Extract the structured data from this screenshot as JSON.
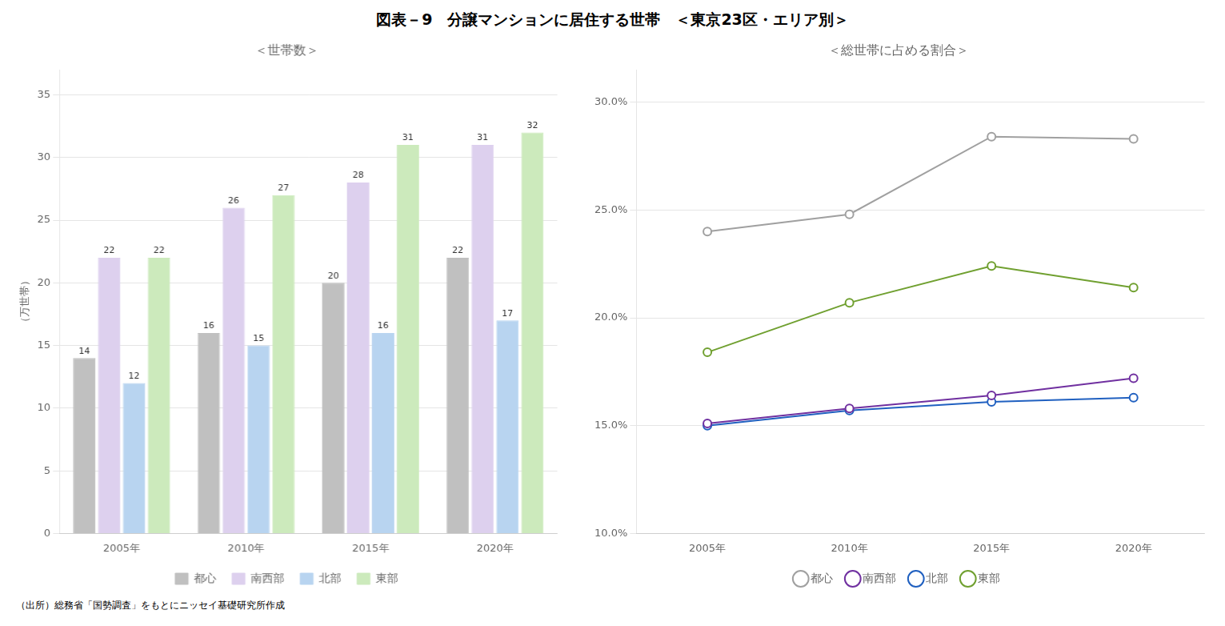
{
  "title": "図表－9　分譲マンションに居住する世帯　＜東京23区・エリア別＞",
  "source": "（出所）総務省「国勢調査」をもとにニッセイ基礎研究所作成",
  "chart_data": [
    {
      "type": "bar",
      "title": "＜世帯数＞",
      "ylabel": "（万世帯）",
      "categories": [
        "2005年",
        "2010年",
        "2015年",
        "2020年"
      ],
      "series": [
        {
          "name": "都心",
          "color": "#c0c0c0",
          "values": [
            14,
            16,
            20,
            22
          ]
        },
        {
          "name": "南西部",
          "color": "#ddd0ee",
          "values": [
            22,
            26,
            28,
            31
          ]
        },
        {
          "name": "北部",
          "color": "#b8d4f0",
          "values": [
            12,
            15,
            16,
            17
          ]
        },
        {
          "name": "東部",
          "color": "#cceabc",
          "values": [
            22,
            27,
            31,
            32
          ]
        }
      ],
      "ylim": [
        0,
        37
      ],
      "yticks": [
        0,
        5,
        10,
        15,
        20,
        25,
        30,
        35
      ],
      "grid": true,
      "legend": "bottom",
      "data_labels": true
    },
    {
      "type": "line",
      "title": "＜総世帯に占める割合＞",
      "categories": [
        "2005年",
        "2010年",
        "2015年",
        "2020年"
      ],
      "series": [
        {
          "name": "都心",
          "color": "#a0a0a0",
          "marker": "circle",
          "values": [
            0.24,
            0.248,
            0.284,
            0.283
          ]
        },
        {
          "name": "南西部",
          "color": "#7030a0",
          "marker": "circle",
          "values": [
            0.151,
            0.158,
            0.164,
            0.172
          ]
        },
        {
          "name": "北部",
          "color": "#2060c0",
          "marker": "circle",
          "values": [
            0.15,
            0.157,
            0.161,
            0.163
          ]
        },
        {
          "name": "東部",
          "color": "#70a030",
          "marker": "circle",
          "values": [
            0.184,
            0.207,
            0.224,
            0.214
          ]
        }
      ],
      "ylim": [
        0.1,
        0.315
      ],
      "yticks": [
        {
          "value": 0.1,
          "label": "10.0%"
        },
        {
          "value": 0.15,
          "label": "15.0%"
        },
        {
          "value": 0.2,
          "label": "20.0%"
        },
        {
          "value": 0.25,
          "label": "25.0%"
        },
        {
          "value": 0.3,
          "label": "30.0%"
        }
      ],
      "grid": true,
      "legend": "bottom"
    }
  ]
}
